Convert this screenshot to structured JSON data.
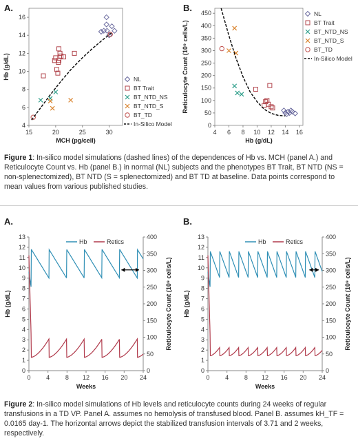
{
  "figure1": {
    "caption_label": "Figure 1",
    "caption_text": ": In-silico model simulations (dashed lines) of the dependences of Hb vs. MCH (panel A.) and Reticulocyte Count vs. Hb (panel B.) in normal (NL) subjects and the phenotypes BT Trait, BT NTD (NS = non-splenectomized), BT NTD (S = splenectomized) and BT TD at baseline. Data points correspond to mean values from various published studies."
  },
  "figure2": {
    "caption_label": "Figure 2",
    "caption_text": ": In-silico model simulations of Hb levels and reticulocyte counts during 24 weeks of regular transfusions in a TD VP. Panel A. assumes no hemolysis of transfused blood. Panel B. assumes kH_TF = 0.0165 day-1. The horizontal arrows depict the stabilized transfusion intervals of 3.71 and 2 weeks, respectively."
  },
  "colors": {
    "NL": "#6a6a9e",
    "BT Trait": "#b0434a",
    "BT_NTD_NS": "#2e9e8a",
    "BT_NTD_S": "#d9822b",
    "BT_TD": "#c0504d",
    "hb": "#2f8fb5",
    "retics": "#b0394a"
  },
  "chart_data": [
    {
      "type": "scatter",
      "panel": "A.",
      "xlabel": "MCH (pg/cell)",
      "ylabel": "Hb (g/dL)",
      "xlim": [
        15,
        32.5
      ],
      "ylim": [
        4,
        17
      ],
      "xticks": [
        15,
        20,
        25,
        30
      ],
      "yticks": [
        4,
        6,
        8,
        10,
        12,
        14,
        16
      ],
      "legend_position": "right",
      "series": [
        {
          "name": "NL",
          "marker": "diamond",
          "points": [
            [
              28.5,
              14.4
            ],
            [
              29,
              14.5
            ],
            [
              29.5,
              16
            ],
            [
              29.6,
              14.5
            ],
            [
              30,
              14
            ],
            [
              30.2,
              14.1
            ],
            [
              30.5,
              15
            ],
            [
              31,
              14.5
            ],
            [
              29.5,
              15.2
            ]
          ]
        },
        {
          "name": "BT Trait",
          "marker": "square",
          "points": [
            [
              17.7,
              9.5
            ],
            [
              19.8,
              11.2
            ],
            [
              20,
              11.5
            ],
            [
              20.2,
              10.2
            ],
            [
              20.5,
              11
            ],
            [
              20.6,
              12.5
            ],
            [
              20.8,
              12
            ],
            [
              21,
              11.7
            ],
            [
              21.5,
              11.6
            ],
            [
              20.6,
              11.2
            ],
            [
              23.5,
              12
            ],
            [
              20.4,
              9.8
            ]
          ]
        },
        {
          "name": "BT_NTD_NS",
          "marker": "x",
          "points": [
            [
              17.2,
              6.8
            ],
            [
              19,
              7
            ],
            [
              20,
              7.7
            ]
          ]
        },
        {
          "name": "BT_NTD_S",
          "marker": "x",
          "points": [
            [
              19,
              6.7
            ],
            [
              19.4,
              5.9
            ],
            [
              22.8,
              6.8
            ]
          ]
        },
        {
          "name": "BT_TD",
          "marker": "circle",
          "points": [
            [
              15.8,
              4.9
            ],
            [
              30.2,
              14.1
            ]
          ]
        }
      ],
      "model_curve": {
        "name": "In-Silico Model",
        "x": [
          15.5,
          17,
          19,
          21,
          23,
          25,
          27,
          29,
          30.5
        ],
        "y": [
          4.6,
          5.8,
          7.4,
          8.9,
          10.3,
          11.5,
          12.6,
          13.6,
          14.3
        ]
      }
    },
    {
      "type": "scatter",
      "panel": "B.",
      "xlabel": "Hb (g/dL)",
      "ylabel": "Reticulocyte Count (10⁹ cells/L)",
      "xlim": [
        4,
        16.5
      ],
      "ylim": [
        0,
        470
      ],
      "xticks": [
        4,
        6,
        8,
        10,
        12,
        14,
        16
      ],
      "yticks": [
        0,
        50,
        100,
        150,
        200,
        250,
        300,
        350,
        400,
        450
      ],
      "legend_position": "right",
      "series": [
        {
          "name": "NL",
          "marker": "diamond",
          "points": [
            [
              13.8,
              60
            ],
            [
              14,
              50
            ],
            [
              14.2,
              45
            ],
            [
              14.4,
              55
            ],
            [
              14.6,
              50
            ],
            [
              14.8,
              60
            ],
            [
              15,
              55
            ],
            [
              15.4,
              48
            ]
          ]
        },
        {
          "name": "BT Trait",
          "marker": "square",
          "points": [
            [
              9.8,
              145
            ],
            [
              11,
              80
            ],
            [
              11.2,
              95
            ],
            [
              11.4,
              100
            ],
            [
              11.6,
              85
            ],
            [
              11.8,
              160
            ],
            [
              12,
              75
            ],
            [
              12.2,
              70
            ]
          ]
        },
        {
          "name": "BT_NTD_NS",
          "marker": "x",
          "points": [
            [
              6.8,
              158
            ],
            [
              7.2,
              130
            ],
            [
              7.8,
              125
            ]
          ]
        },
        {
          "name": "BT_NTD_S",
          "marker": "x",
          "points": [
            [
              6,
              300
            ],
            [
              6.8,
              390
            ],
            [
              7,
              290
            ]
          ]
        },
        {
          "name": "BT_TD",
          "marker": "circle",
          "points": [
            [
              5,
              308
            ]
          ]
        }
      ],
      "model_curve": {
        "name": "In-Silico Model",
        "x": [
          4.9,
          6,
          7,
          8,
          9,
          10,
          11,
          12,
          13,
          14
        ],
        "y": [
          470,
          360,
          270,
          195,
          135,
          95,
          65,
          48,
          40,
          38
        ]
      }
    },
    {
      "type": "line",
      "panel": "A.",
      "xlabel": "Weeks",
      "ylabel": "Hb (g/dL)",
      "y2label": "Reticulocyte Count (10⁹ cells/L)",
      "xlim": [
        0,
        24
      ],
      "ylim": [
        0,
        13
      ],
      "y2lim": [
        0,
        400
      ],
      "xticks": [
        0,
        4,
        8,
        12,
        16,
        20,
        24
      ],
      "yticks": [
        0,
        1,
        2,
        3,
        4,
        5,
        6,
        7,
        8,
        9,
        10,
        11,
        12,
        13
      ],
      "y2ticks": [
        0,
        50,
        100,
        150,
        200,
        250,
        300,
        350,
        400
      ],
      "legend_position": "top",
      "transfusion_interval_weeks": 3.71,
      "series": [
        {
          "name": "Hb",
          "axis": "left",
          "peak": 11.8,
          "trough": 9.0
        },
        {
          "name": "Retics",
          "axis": "right",
          "peak": 95,
          "trough": 40
        }
      ]
    },
    {
      "type": "line",
      "panel": "B.",
      "xlabel": "Weeks",
      "ylabel": "Hb (g/dL)",
      "y2label": "Reticulocyte Count (10⁹ cells/L)",
      "xlim": [
        0,
        24
      ],
      "ylim": [
        0,
        13
      ],
      "y2lim": [
        0,
        400
      ],
      "xticks": [
        0,
        4,
        8,
        12,
        16,
        20,
        24
      ],
      "yticks": [
        0,
        1,
        2,
        3,
        4,
        5,
        6,
        7,
        8,
        9,
        10,
        11,
        12,
        13
      ],
      "y2ticks": [
        0,
        50,
        100,
        150,
        200,
        250,
        300,
        350,
        400
      ],
      "legend_position": "top",
      "transfusion_interval_weeks": 2,
      "series": [
        {
          "name": "Hb",
          "axis": "left",
          "peak": 11.6,
          "trough": 9.0
        },
        {
          "name": "Retics",
          "axis": "right",
          "peak": 70,
          "trough": 45
        }
      ]
    }
  ]
}
